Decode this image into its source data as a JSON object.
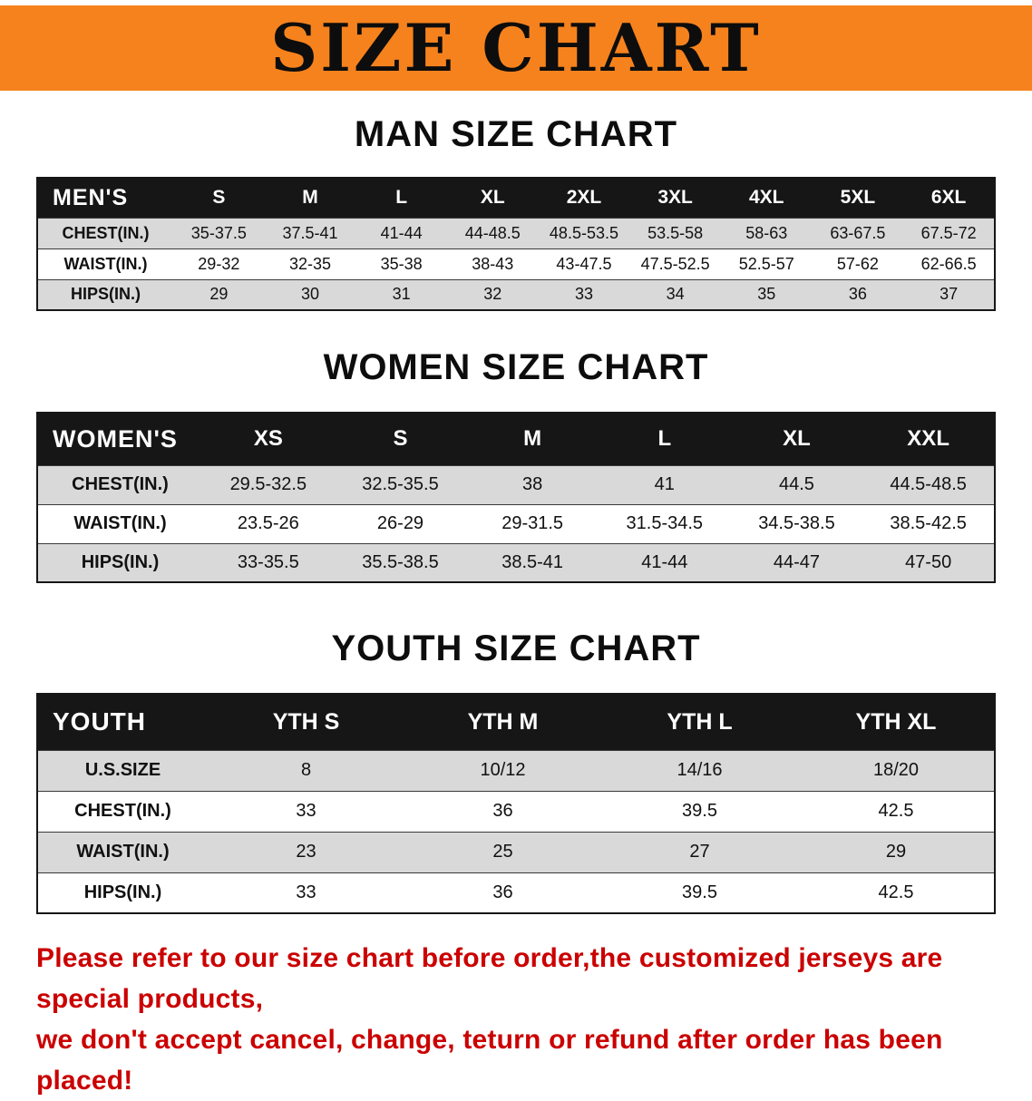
{
  "banner": {
    "title": "SIZE CHART"
  },
  "colors": {
    "orange": "#f6821d",
    "header_black": "#161616",
    "row_gray": "#d9d9d9",
    "note_red": "#cb0000"
  },
  "sections": {
    "men": {
      "heading": "MAN SIZE CHART",
      "table": {
        "header": [
          "MEN'S",
          "S",
          "M",
          "L",
          "XL",
          "2XL",
          "3XL",
          "4XL",
          "5XL",
          "6XL"
        ],
        "rows": [
          [
            "CHEST(IN.)",
            "35-37.5",
            "37.5-41",
            "41-44",
            "44-48.5",
            "48.5-53.5",
            "53.5-58",
            "58-63",
            "63-67.5",
            "67.5-72"
          ],
          [
            "WAIST(IN.)",
            "29-32",
            "32-35",
            "35-38",
            "38-43",
            "43-47.5",
            "47.5-52.5",
            "52.5-57",
            "57-62",
            "62-66.5"
          ],
          [
            "HIPS(IN.)",
            "29",
            "30",
            "31",
            "32",
            "33",
            "34",
            "35",
            "36",
            "37"
          ]
        ]
      }
    },
    "women": {
      "heading": "WOMEN SIZE CHART",
      "table": {
        "header": [
          "WOMEN'S",
          "XS",
          "S",
          "M",
          "L",
          "XL",
          "XXL"
        ],
        "rows": [
          [
            "CHEST(IN.)",
            "29.5-32.5",
            "32.5-35.5",
            "38",
            "41",
            "44.5",
            "44.5-48.5"
          ],
          [
            "WAIST(IN.)",
            "23.5-26",
            "26-29",
            "29-31.5",
            "31.5-34.5",
            "34.5-38.5",
            "38.5-42.5"
          ],
          [
            "HIPS(IN.)",
            "33-35.5",
            "35.5-38.5",
            "38.5-41",
            "41-44",
            "44-47",
            "47-50"
          ]
        ]
      }
    },
    "youth": {
      "heading": "YOUTH SIZE CHART",
      "table": {
        "header": [
          "YOUTH",
          "YTH S",
          "YTH M",
          "YTH L",
          "YTH XL"
        ],
        "rows": [
          [
            "U.S.SIZE",
            "8",
            "10/12",
            "14/16",
            "18/20"
          ],
          [
            "CHEST(IN.)",
            "33",
            "36",
            "39.5",
            "42.5"
          ],
          [
            "WAIST(IN.)",
            "23",
            "25",
            "27",
            "29"
          ],
          [
            "HIPS(IN.)",
            "33",
            "36",
            "39.5",
            "42.5"
          ]
        ]
      }
    }
  },
  "footer": {
    "line1": "Please refer to our size chart before order,the customized jerseys are special products,",
    "line2": "we don't accept cancel, change, teturn or refund after order has been placed!"
  }
}
